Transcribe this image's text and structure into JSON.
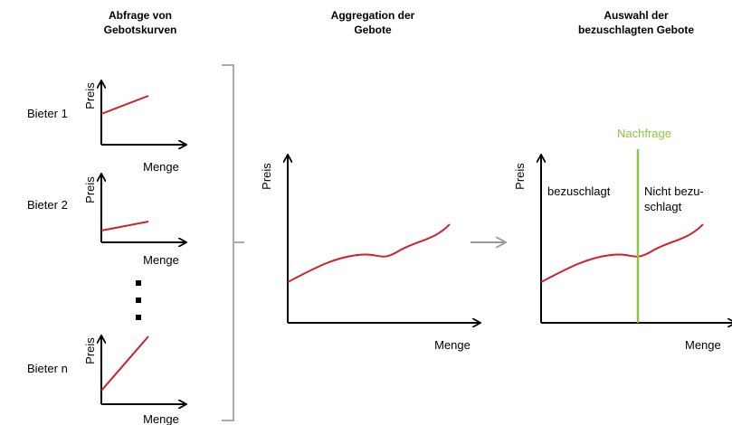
{
  "columns": [
    {
      "title": [
        "Abfrage von",
        "Gebotskurven"
      ]
    },
    {
      "title": [
        "Aggregation der",
        "Gebote"
      ]
    },
    {
      "title": [
        "Auswahl der",
        "bezuschlagten Gebote"
      ]
    }
  ],
  "bidders": [
    {
      "label": "Bieter 1",
      "y_axis": "Preis",
      "x_axis": "Menge"
    },
    {
      "label": "Bieter 2",
      "y_axis": "Preis",
      "x_axis": "Menge"
    },
    {
      "label": "Bieter n",
      "y_axis": "Preis",
      "x_axis": "Menge"
    }
  ],
  "aggregate": {
    "y_axis": "Preis",
    "x_axis": "Menge"
  },
  "selection": {
    "y_axis": "Preis",
    "x_axis": "Menge",
    "demand": "Nachfrage",
    "accepted": "bezuschlagt",
    "rejected": [
      "Nicht bezu-",
      "schlagt"
    ]
  }
}
